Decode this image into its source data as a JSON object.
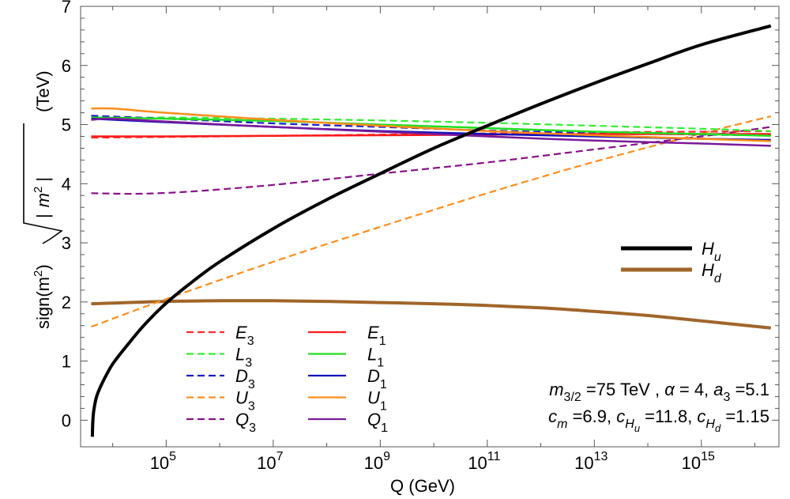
{
  "chart_data": {
    "type": "line",
    "title": "",
    "xlabel": "Q (GeV)",
    "ylabel": "sign(m²)√|m²| (TeV)",
    "ylabel_parts": {
      "sign": "sign(m",
      "sq": "2",
      "close": ")",
      "abs_left": "|",
      "m": "m",
      "abs_right": "|",
      "unit": "(TeV)"
    },
    "x_scale": "log10",
    "xlim_log10": [
      3.4,
      16.45
    ],
    "ylim": [
      -0.45,
      7.0
    ],
    "x_ticks": [
      {
        "base": "10",
        "exp": "5",
        "log10": 5
      },
      {
        "base": "10",
        "exp": "7",
        "log10": 7
      },
      {
        "base": "10",
        "exp": "9",
        "log10": 9
      },
      {
        "base": "10",
        "exp": "11",
        "log10": 11
      },
      {
        "base": "10",
        "exp": "13",
        "log10": 13
      },
      {
        "base": "10",
        "exp": "15",
        "log10": 15
      }
    ],
    "y_ticks": [
      "0",
      "1",
      "2",
      "3",
      "4",
      "5",
      "6",
      "7"
    ],
    "series": [
      {
        "name": "E3",
        "sym": "E",
        "sub": "3",
        "color": "#ff2a2a",
        "dash": true,
        "width": 2.2,
        "x": [
          3.6,
          5,
          7,
          9,
          11,
          13,
          15,
          16.3
        ],
        "y": [
          4.78,
          4.79,
          4.81,
          4.83,
          4.85,
          4.87,
          4.88,
          4.89
        ]
      },
      {
        "name": "L3",
        "sym": "L",
        "sub": "3",
        "color": "#33ee33",
        "dash": true,
        "width": 2.2,
        "x": [
          3.6,
          5,
          7,
          9,
          11,
          13,
          15,
          16.3
        ],
        "y": [
          5.1,
          5.12,
          5.1,
          5.07,
          5.03,
          4.98,
          4.93,
          4.89
        ]
      },
      {
        "name": "D3",
        "sym": "D",
        "sub": "3",
        "color": "#1a1acc",
        "dash": true,
        "width": 2.2,
        "x": [
          3.6,
          5,
          7,
          9,
          11,
          13,
          15,
          16.3
        ],
        "y": [
          5.15,
          5.1,
          5.02,
          4.96,
          4.9,
          4.86,
          4.83,
          4.82
        ]
      },
      {
        "name": "U3",
        "sym": "U",
        "sub": "3",
        "color": "#ff8c1a",
        "dash": true,
        "width": 2.2,
        "x": [
          3.6,
          5,
          7,
          9,
          11,
          13,
          15,
          16.3
        ],
        "y": [
          1.58,
          2.05,
          2.68,
          3.27,
          3.84,
          4.37,
          4.85,
          5.14
        ]
      },
      {
        "name": "Q3",
        "sym": "Q",
        "sub": "3",
        "color": "#8b108b",
        "dash": true,
        "width": 2.2,
        "x": [
          3.6,
          4.5,
          5.5,
          7,
          9,
          11,
          13,
          15,
          16.3
        ],
        "y": [
          3.84,
          3.83,
          3.87,
          3.98,
          4.17,
          4.36,
          4.58,
          4.8,
          4.96
        ]
      },
      {
        "name": "E1",
        "sym": "E",
        "sub": "1",
        "color": "#ff1a1a",
        "dash": false,
        "width": 2.5,
        "x": [
          3.6,
          5,
          7,
          9,
          11,
          13,
          15,
          16.3
        ],
        "y": [
          4.8,
          4.8,
          4.81,
          4.82,
          4.83,
          4.84,
          4.84,
          4.84
        ]
      },
      {
        "name": "L1",
        "sym": "L",
        "sub": "1",
        "color": "#22dd22",
        "dash": false,
        "width": 2.5,
        "x": [
          3.6,
          5,
          7,
          9,
          11,
          13,
          15,
          16.3
        ],
        "y": [
          5.12,
          5.1,
          5.06,
          5.0,
          4.94,
          4.88,
          4.84,
          4.81
        ]
      },
      {
        "name": "D1",
        "sym": "D",
        "sub": "1",
        "color": "#1010bb",
        "dash": false,
        "width": 2.5,
        "x": [
          3.6,
          5,
          7,
          9,
          11,
          13,
          15,
          16.3
        ],
        "y": [
          5.1,
          5.04,
          4.96,
          4.89,
          4.84,
          4.8,
          4.76,
          4.74
        ]
      },
      {
        "name": "U1",
        "sym": "U",
        "sub": "1",
        "color": "#ff8c1a",
        "dash": false,
        "width": 2.5,
        "x": [
          3.6,
          4,
          5,
          7,
          9,
          11,
          13,
          15,
          16.3
        ],
        "y": [
          5.27,
          5.27,
          5.2,
          5.08,
          4.98,
          4.89,
          4.82,
          4.76,
          4.72
        ]
      },
      {
        "name": "Q1",
        "sym": "Q",
        "sub": "1",
        "color": "#7a1a9a",
        "dash": false,
        "width": 2.5,
        "x": [
          3.6,
          4,
          5,
          7,
          9,
          11,
          13,
          15,
          16.3
        ],
        "y": [
          5.08,
          5.1,
          5.05,
          4.96,
          4.88,
          4.8,
          4.73,
          4.68,
          4.64
        ]
      },
      {
        "name": "Hu",
        "sym": "H",
        "sub": "u",
        "color": "#000000",
        "dash": false,
        "width": 4,
        "x": [
          3.62,
          3.63,
          3.65,
          3.7,
          3.8,
          4.0,
          4.3,
          4.6,
          5.0,
          5.5,
          6,
          7,
          8,
          9,
          10,
          11,
          12,
          13,
          14,
          15,
          16.3
        ],
        "y": [
          -0.28,
          0.0,
          0.18,
          0.4,
          0.62,
          0.95,
          1.3,
          1.62,
          1.98,
          2.35,
          2.68,
          3.24,
          3.73,
          4.17,
          4.6,
          4.98,
          5.35,
          5.7,
          6.03,
          6.35,
          6.67
        ]
      },
      {
        "name": "Hd",
        "sym": "H",
        "sub": "d",
        "color": "#a0652a",
        "dash": false,
        "width": 4,
        "x": [
          3.6,
          4,
          5,
          6,
          7,
          8,
          9,
          10,
          11,
          12,
          13,
          14,
          15,
          16.3
        ],
        "y": [
          1.97,
          1.98,
          2.01,
          2.02,
          2.02,
          2.01,
          1.99,
          1.97,
          1.94,
          1.9,
          1.84,
          1.77,
          1.68,
          1.56
        ]
      }
    ],
    "legend_left": [
      "E3",
      "L3",
      "D3",
      "U3",
      "Q3"
    ],
    "legend_right": [
      "E1",
      "L1",
      "D1",
      "U1",
      "Q1"
    ],
    "legend_higgs": [
      "Hu",
      "Hd"
    ],
    "annotation": {
      "line1": [
        {
          "t": "m",
          "it": true
        },
        {
          "t": "3/2",
          "sub": true
        },
        {
          "t": " =75 TeV , "
        },
        {
          "t": "α",
          "it": true
        },
        {
          "t": " = 4, "
        },
        {
          "t": "a",
          "it": true
        },
        {
          "t": "3",
          "sub": true
        },
        {
          "t": " =5.1"
        }
      ],
      "line2": [
        {
          "t": "c",
          "it": true
        },
        {
          "t": "m",
          "sub": true,
          "it": true
        },
        {
          "t": " =6.9, "
        },
        {
          "t": "c",
          "it": true
        },
        {
          "t": "H",
          "sub": true,
          "it": true
        },
        {
          "t": "u",
          "subsub": true,
          "it": true
        },
        {
          "t": " =11.8, "
        },
        {
          "t": "c",
          "it": true
        },
        {
          "t": "H",
          "sub": true,
          "it": true
        },
        {
          "t": "d",
          "subsub": true,
          "it": true
        },
        {
          "t": " =1.15"
        }
      ]
    }
  }
}
